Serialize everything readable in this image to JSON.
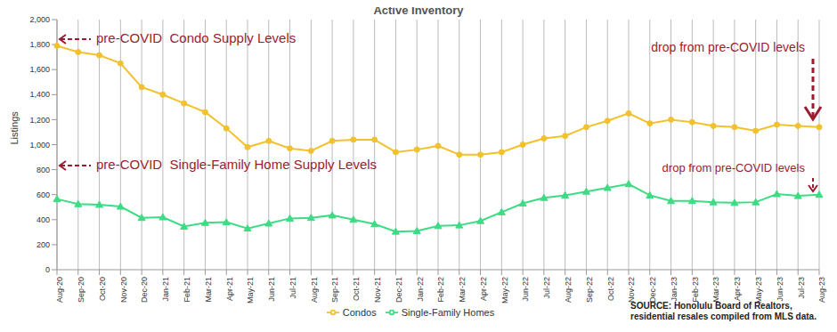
{
  "chart_data": {
    "type": "line",
    "title": "Active Inventory",
    "y_label": "Listings",
    "categories": [
      "Aug-20",
      "Sep-20",
      "Oct-20",
      "Nov-20",
      "Dec-20",
      "Jan-21",
      "Feb-21",
      "Mar-21",
      "Apr-21",
      "May-21",
      "Jun-21",
      "Jul-21",
      "Aug-21",
      "Sep-21",
      "Oct-21",
      "Nov-21",
      "Dec-21",
      "Jan-22",
      "Feb-22",
      "Mar-22",
      "Apr-22",
      "May-22",
      "Jun-22",
      "Jul-22",
      "Aug-22",
      "Sep-22",
      "Oct-22",
      "Nov-22",
      "Dec-22",
      "Jan-23",
      "Feb-23",
      "Mar-23",
      "Apr-23",
      "May-23",
      "Jun-23",
      "Jul-23",
      "Aug-23"
    ],
    "series": [
      {
        "name": "Single-Family Homes",
        "color": "#3ddc84",
        "marker": "triangle",
        "values": [
          565,
          525,
          520,
          505,
          415,
          420,
          345,
          375,
          380,
          330,
          370,
          410,
          415,
          435,
          400,
          365,
          305,
          310,
          350,
          355,
          390,
          460,
          530,
          575,
          595,
          625,
          655,
          685,
          595,
          550,
          550,
          540,
          535,
          540,
          605,
          590,
          600
        ]
      },
      {
        "name": "Condos",
        "color": "#f2c12e",
        "marker": "circle",
        "values": [
          1790,
          1740,
          1715,
          1650,
          1460,
          1400,
          1330,
          1260,
          1130,
          980,
          1030,
          970,
          950,
          1030,
          1040,
          1040,
          940,
          960,
          990,
          920,
          920,
          940,
          1000,
          1050,
          1070,
          1140,
          1190,
          1250,
          1170,
          1200,
          1180,
          1150,
          1140,
          1110,
          1160,
          1150,
          1140
        ]
      }
    ],
    "ylim": [
      0,
      2000
    ],
    "yticks": [
      0,
      200,
      400,
      600,
      800,
      {
        "value": 1000,
        "label": "1,000"
      },
      {
        "value": 1200,
        "label": "1,200"
      },
      {
        "value": 1400,
        "label": "1,400"
      },
      {
        "value": 1600,
        "label": "1,600"
      },
      {
        "value": 1800,
        "label": "1,800"
      },
      {
        "value": 2000,
        "label": "2,000"
      }
    ],
    "grid": true,
    "legend": "bottom",
    "annotations": [
      "pre-COVID  Condo Supply Levels",
      "pre-COVID  Single-Family Home Supply Levels",
      "drop from pre-COVID levels",
      "drop from pre-COVID levels"
    ],
    "source": [
      "SOURCE: Honolulu Board of Realtors,",
      "residential resales compiled from MLS data."
    ]
  }
}
